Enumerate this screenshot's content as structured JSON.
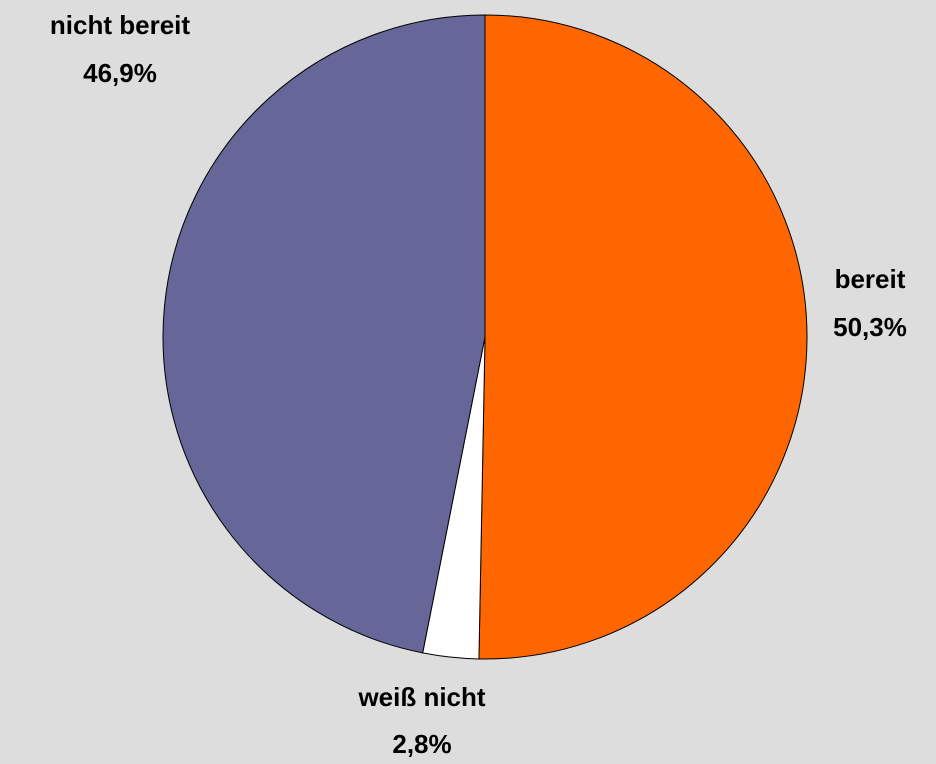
{
  "chart_data": {
    "type": "pie",
    "categories": [
      "bereit",
      "weiß nicht",
      "nicht bereit"
    ],
    "values": [
      50.3,
      2.8,
      46.9
    ],
    "value_labels": [
      "50,3%",
      "2,8%",
      "46,9%"
    ],
    "colors": [
      "#ff6600",
      "#ffffff",
      "#666699"
    ]
  }
}
